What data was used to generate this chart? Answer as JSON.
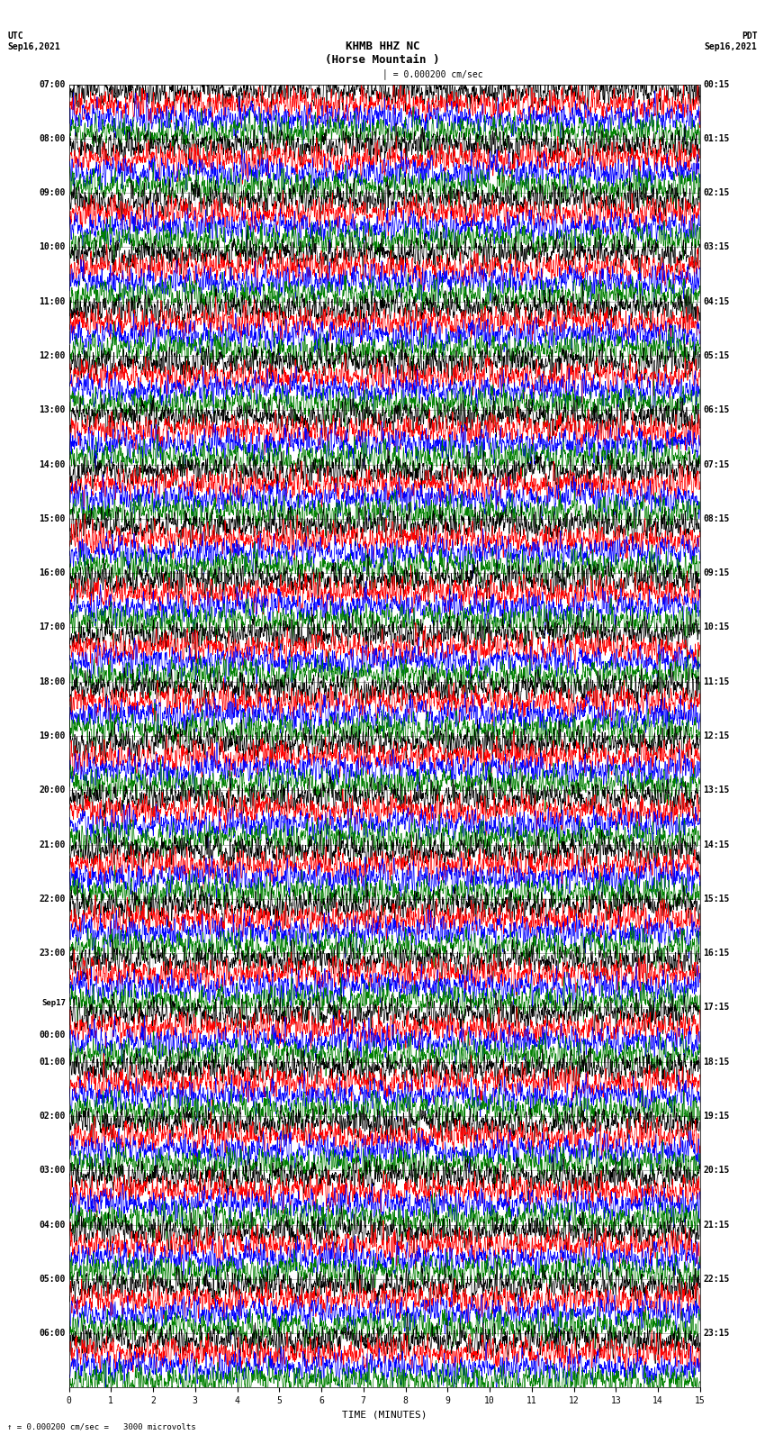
{
  "title_line1": "KHMB HHZ NC",
  "title_line2": "(Horse Mountain )",
  "scale_text": "= 0.000200 cm/sec",
  "scale_label": "= 0.000200 cm/sec =   3000 microvolts",
  "utc_label": "UTC",
  "pdt_label": "PDT",
  "date_left": "Sep16,2021",
  "date_right": "Sep16,2021",
  "xlabel": "TIME (MINUTES)",
  "xmin": 0,
  "xmax": 15,
  "xticks": [
    0,
    1,
    2,
    3,
    4,
    5,
    6,
    7,
    8,
    9,
    10,
    11,
    12,
    13,
    14,
    15
  ],
  "background_color": "#ffffff",
  "trace_colors": [
    "black",
    "red",
    "blue",
    "green"
  ],
  "left_times_utc": [
    "07:00",
    "08:00",
    "09:00",
    "10:00",
    "11:00",
    "12:00",
    "13:00",
    "14:00",
    "15:00",
    "16:00",
    "17:00",
    "18:00",
    "19:00",
    "20:00",
    "21:00",
    "22:00",
    "23:00",
    "Sep17\n00:00",
    "01:00",
    "02:00",
    "03:00",
    "04:00",
    "05:00",
    "06:00"
  ],
  "right_times_pdt": [
    "00:15",
    "01:15",
    "02:15",
    "03:15",
    "04:15",
    "05:15",
    "06:15",
    "07:15",
    "08:15",
    "09:15",
    "10:15",
    "11:15",
    "12:15",
    "13:15",
    "14:15",
    "15:15",
    "16:15",
    "17:15",
    "18:15",
    "19:15",
    "20:15",
    "21:15",
    "22:15",
    "23:15"
  ],
  "figwidth": 8.5,
  "figheight": 16.13,
  "dpi": 100,
  "title_fontsize": 9,
  "label_fontsize": 7,
  "tick_fontsize": 7,
  "axis_label_fontsize": 8,
  "random_seed": 42
}
